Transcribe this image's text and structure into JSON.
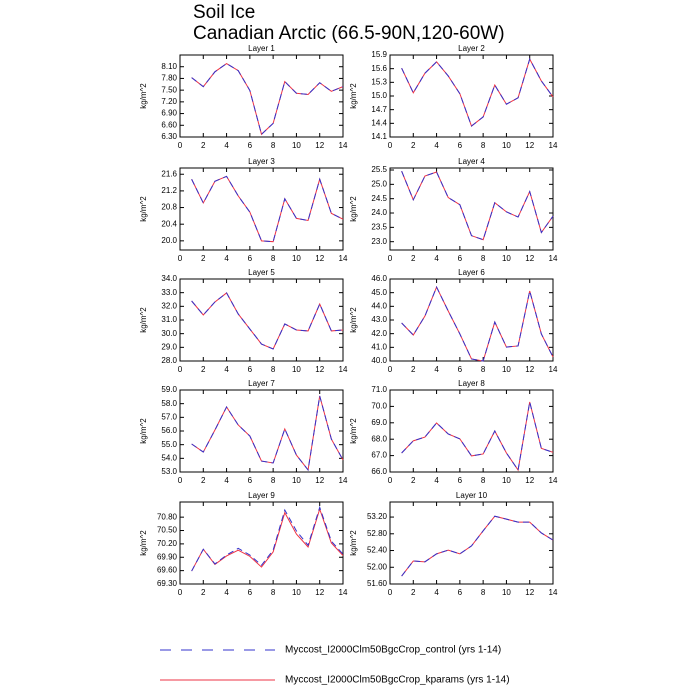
{
  "title": "Soil Ice",
  "subtitle": "Canadian Arctic (66.5-90N,120-60W)",
  "series": [
    {
      "name": "Myccost_I2000Clm50BgcCrop_control (yrs 1-14)",
      "color": "#3333cc",
      "dash": true
    },
    {
      "name": "Myccost_I2000Clm50BgcCrop_kparams (yrs 1-14)",
      "color": "#ee3344",
      "dash": false
    }
  ],
  "chart_data": [
    {
      "type": "line",
      "title": "Layer 1",
      "ylabel": "kg/m^2",
      "x": [
        1,
        2,
        3,
        4,
        5,
        6,
        7,
        8,
        9,
        10,
        11,
        12,
        13,
        14
      ],
      "xlim": [
        0,
        14
      ],
      "xticks": [
        0,
        2,
        4,
        6,
        8,
        10,
        12,
        14
      ],
      "ylim": [
        6.3,
        8.4
      ],
      "yticks": [
        {
          "value": 6.3,
          "label": "6.30"
        },
        {
          "value": 6.6,
          "label": "6.60"
        },
        {
          "value": 6.9,
          "label": "6.90"
        },
        {
          "value": 7.2,
          "label": "7.20"
        },
        {
          "value": 7.5,
          "label": "7.50"
        },
        {
          "value": 7.8,
          "label": "7.80"
        },
        {
          "value": 8.1,
          "label": "8.10"
        }
      ],
      "series": [
        {
          "values": [
            7.82,
            7.59,
            7.97,
            8.18,
            8.0,
            7.49,
            6.37,
            6.65,
            7.72,
            7.42,
            7.39,
            7.69,
            7.47,
            7.59
          ]
        },
        {
          "values": [
            7.82,
            7.59,
            7.97,
            8.18,
            8.0,
            7.49,
            6.37,
            6.65,
            7.72,
            7.42,
            7.39,
            7.69,
            7.47,
            7.59
          ]
        }
      ]
    },
    {
      "type": "line",
      "title": "Layer 2",
      "ylabel": "kg/m^2",
      "x": [
        1,
        2,
        3,
        4,
        5,
        6,
        7,
        8,
        9,
        10,
        11,
        12,
        13,
        14
      ],
      "xlim": [
        0,
        14
      ],
      "xticks": [
        0,
        2,
        4,
        6,
        8,
        10,
        12,
        14
      ],
      "ylim": [
        14.1,
        15.9
      ],
      "yticks": [
        14.1,
        14.4,
        14.7,
        {
          "value": 15.0,
          "label": "15.0"
        },
        15.3,
        15.6,
        15.9
      ],
      "series": [
        {
          "values": [
            15.61,
            15.07,
            15.5,
            15.75,
            15.44,
            15.05,
            14.34,
            14.54,
            15.24,
            14.82,
            14.96,
            15.81,
            15.33,
            14.98
          ]
        },
        {
          "values": [
            15.61,
            15.07,
            15.5,
            15.75,
            15.44,
            15.05,
            14.34,
            14.54,
            15.24,
            14.82,
            14.96,
            15.81,
            15.33,
            14.98
          ]
        }
      ]
    },
    {
      "type": "line",
      "title": "Layer 3",
      "ylabel": "kg/m^2",
      "x": [
        1,
        2,
        3,
        4,
        5,
        6,
        7,
        8,
        9,
        10,
        11,
        12,
        13,
        14
      ],
      "xlim": [
        0,
        14
      ],
      "xticks": [
        0,
        2,
        4,
        6,
        8,
        10,
        12,
        14
      ],
      "ylim": [
        19.78,
        21.75
      ],
      "yticks": [
        {
          "value": 20.0,
          "label": "20.0"
        },
        20.4,
        20.8,
        21.2,
        21.6
      ],
      "series": [
        {
          "values": [
            21.48,
            20.91,
            21.43,
            21.55,
            21.08,
            20.69,
            20.0,
            19.98,
            21.01,
            20.54,
            20.49,
            21.48,
            20.66,
            20.52
          ]
        },
        {
          "values": [
            21.48,
            20.91,
            21.43,
            21.55,
            21.08,
            20.69,
            20.0,
            19.98,
            21.01,
            20.54,
            20.49,
            21.48,
            20.66,
            20.52
          ]
        }
      ]
    },
    {
      "type": "line",
      "title": "Layer 4",
      "ylabel": "kg/m^2",
      "x": [
        1,
        2,
        3,
        4,
        5,
        6,
        7,
        8,
        9,
        10,
        11,
        12,
        13,
        14
      ],
      "xlim": [
        0,
        14
      ],
      "xticks": [
        0,
        2,
        4,
        6,
        8,
        10,
        12,
        14
      ],
      "ylim": [
        22.71,
        25.57
      ],
      "yticks": [
        {
          "value": 23.0,
          "label": "23.0"
        },
        23.5,
        {
          "value": 24.0,
          "label": "24.0"
        },
        24.5,
        {
          "value": 25.0,
          "label": "25.0"
        },
        25.5
      ],
      "series": [
        {
          "values": [
            25.46,
            24.46,
            25.29,
            25.43,
            24.54,
            24.29,
            23.21,
            23.07,
            24.36,
            24.04,
            23.86,
            24.75,
            23.32,
            23.89
          ]
        },
        {
          "values": [
            25.46,
            24.46,
            25.29,
            25.43,
            24.54,
            24.29,
            23.21,
            23.07,
            24.36,
            24.04,
            23.86,
            24.75,
            23.32,
            23.89
          ]
        }
      ]
    },
    {
      "type": "line",
      "title": "Layer 5",
      "ylabel": "kg/m^2",
      "x": [
        1,
        2,
        3,
        4,
        5,
        6,
        7,
        8,
        9,
        10,
        11,
        12,
        13,
        14
      ],
      "xlim": [
        0,
        14
      ],
      "xticks": [
        0,
        2,
        4,
        6,
        8,
        10,
        12,
        14
      ],
      "ylim": [
        28,
        34
      ],
      "yticks": [
        {
          "value": 28,
          "label": "28.0"
        },
        {
          "value": 29,
          "label": "29.0"
        },
        {
          "value": 30,
          "label": "30.0"
        },
        {
          "value": 31,
          "label": "31.0"
        },
        {
          "value": 32,
          "label": "32.0"
        },
        {
          "value": 33,
          "label": "33.0"
        },
        {
          "value": 34,
          "label": "34.0"
        }
      ],
      "series": [
        {
          "values": [
            32.39,
            31.37,
            32.32,
            32.98,
            31.44,
            30.34,
            29.24,
            28.88,
            30.71,
            30.27,
            30.2,
            32.17,
            30.2,
            30.27
          ]
        },
        {
          "values": [
            32.39,
            31.37,
            32.32,
            32.98,
            31.44,
            30.34,
            29.24,
            28.88,
            30.71,
            30.27,
            30.2,
            32.17,
            30.2,
            30.27
          ]
        }
      ]
    },
    {
      "type": "line",
      "title": "Layer 6",
      "ylabel": "kg/m^2",
      "x": [
        1,
        2,
        3,
        4,
        5,
        6,
        7,
        8,
        9,
        10,
        11,
        12,
        13,
        14
      ],
      "xlim": [
        0,
        14
      ],
      "xticks": [
        0,
        2,
        4,
        6,
        8,
        10,
        12,
        14
      ],
      "ylim": [
        40,
        46
      ],
      "yticks": [
        {
          "value": 40,
          "label": "40.0"
        },
        {
          "value": 41,
          "label": "41.0"
        },
        {
          "value": 42,
          "label": "42.0"
        },
        {
          "value": 43,
          "label": "43.0"
        },
        {
          "value": 44,
          "label": "44.0"
        },
        {
          "value": 45,
          "label": "45.0"
        },
        {
          "value": 46,
          "label": "46.0"
        }
      ],
      "series": [
        {
          "values": [
            42.78,
            41.9,
            43.29,
            45.41,
            43.66,
            41.98,
            40.15,
            40.0,
            42.85,
            41.02,
            41.1,
            45.12,
            41.98,
            40.29
          ]
        },
        {
          "values": [
            42.78,
            41.9,
            43.29,
            45.41,
            43.66,
            41.98,
            40.15,
            40.0,
            42.85,
            41.02,
            41.1,
            45.12,
            41.98,
            40.29
          ]
        }
      ]
    },
    {
      "type": "line",
      "title": "Layer 7",
      "ylabel": "kg/m^2",
      "x": [
        1,
        2,
        3,
        4,
        5,
        6,
        7,
        8,
        9,
        10,
        11,
        12,
        13,
        14
      ],
      "xlim": [
        0,
        14
      ],
      "xticks": [
        0,
        2,
        4,
        6,
        8,
        10,
        12,
        14
      ],
      "ylim": [
        53,
        59
      ],
      "yticks": [
        {
          "value": 53,
          "label": "53.0"
        },
        {
          "value": 54,
          "label": "54.0"
        },
        {
          "value": 55,
          "label": "55.0"
        },
        {
          "value": 56,
          "label": "56.0"
        },
        {
          "value": 57,
          "label": "57.0"
        },
        {
          "value": 58,
          "label": "58.0"
        },
        {
          "value": 59,
          "label": "59.0"
        }
      ],
      "series": [
        {
          "values": [
            55.05,
            54.46,
            56.07,
            57.76,
            56.44,
            55.63,
            53.8,
            53.66,
            56.15,
            54.24,
            53.15,
            58.56,
            55.41,
            53.88
          ]
        },
        {
          "values": [
            55.05,
            54.46,
            56.07,
            57.76,
            56.44,
            55.63,
            53.8,
            53.66,
            56.15,
            54.24,
            53.15,
            58.56,
            55.41,
            53.88
          ]
        }
      ]
    },
    {
      "type": "line",
      "title": "Layer 8",
      "ylabel": "kg/m^2",
      "x": [
        1,
        2,
        3,
        4,
        5,
        6,
        7,
        8,
        9,
        10,
        11,
        12,
        13,
        14
      ],
      "xlim": [
        0,
        14
      ],
      "xticks": [
        0,
        2,
        4,
        6,
        8,
        10,
        12,
        14
      ],
      "ylim": [
        66,
        71
      ],
      "yticks": [
        {
          "value": 66,
          "label": "66.0"
        },
        {
          "value": 67,
          "label": "67.0"
        },
        {
          "value": 68,
          "label": "68.0"
        },
        {
          "value": 69,
          "label": "69.0"
        },
        {
          "value": 70,
          "label": "70.0"
        },
        {
          "value": 71,
          "label": "71.0"
        }
      ],
      "series": [
        {
          "values": [
            67.16,
            67.9,
            68.13,
            68.99,
            68.32,
            68.02,
            66.98,
            67.1,
            68.5,
            67.16,
            66.12,
            70.27,
            67.44,
            67.2
          ]
        },
        {
          "values": [
            67.16,
            67.9,
            68.13,
            68.99,
            68.32,
            68.02,
            66.98,
            67.1,
            68.5,
            67.16,
            66.12,
            70.27,
            67.44,
            67.2
          ]
        }
      ]
    },
    {
      "type": "line",
      "title": "Layer 9",
      "ylabel": "kg/m^2",
      "x": [
        1,
        2,
        3,
        4,
        5,
        6,
        7,
        8,
        9,
        10,
        11,
        12,
        13,
        14
      ],
      "xlim": [
        0,
        14
      ],
      "xticks": [
        0,
        2,
        4,
        6,
        8,
        10,
        12,
        14
      ],
      "ylim": [
        69.3,
        71.14
      ],
      "yticks": [
        {
          "value": 69.3,
          "label": "69.30"
        },
        {
          "value": 69.6,
          "label": "69.60"
        },
        {
          "value": 69.9,
          "label": "69.90"
        },
        {
          "value": 70.2,
          "label": "70.20"
        },
        {
          "value": 70.5,
          "label": "70.50"
        },
        {
          "value": 70.8,
          "label": "70.80"
        }
      ],
      "series": [
        {
          "values": [
            69.59,
            70.08,
            69.75,
            69.95,
            70.1,
            69.95,
            69.72,
            70.06,
            70.96,
            70.49,
            70.17,
            71.02,
            70.26,
            69.97
          ]
        },
        {
          "values": [
            69.59,
            70.08,
            69.74,
            69.93,
            70.06,
            69.92,
            69.68,
            70.02,
            70.9,
            70.42,
            70.13,
            70.98,
            70.22,
            69.94
          ]
        }
      ]
    },
    {
      "type": "line",
      "title": "Layer 10",
      "ylabel": "kg/m^2",
      "x": [
        1,
        2,
        3,
        4,
        5,
        6,
        7,
        8,
        9,
        10,
        11,
        12,
        13,
        14
      ],
      "xlim": [
        0,
        14
      ],
      "xticks": [
        0,
        2,
        4,
        6,
        8,
        10,
        12,
        14
      ],
      "ylim": [
        51.6,
        53.56
      ],
      "yticks": [
        {
          "value": 51.6,
          "label": "51.60"
        },
        {
          "value": 52.0,
          "label": "52.00"
        },
        {
          "value": 52.4,
          "label": "52.40"
        },
        {
          "value": 52.8,
          "label": "52.80"
        },
        {
          "value": 53.2,
          "label": "53.20"
        }
      ],
      "series": [
        {
          "values": [
            51.79,
            52.15,
            52.13,
            52.32,
            52.41,
            52.32,
            52.51,
            52.87,
            53.22,
            53.15,
            53.08,
            53.08,
            52.82,
            52.65
          ]
        },
        {
          "values": [
            51.79,
            52.15,
            52.13,
            52.32,
            52.41,
            52.32,
            52.51,
            52.87,
            53.22,
            53.15,
            53.08,
            53.08,
            52.82,
            52.65
          ]
        }
      ]
    }
  ]
}
